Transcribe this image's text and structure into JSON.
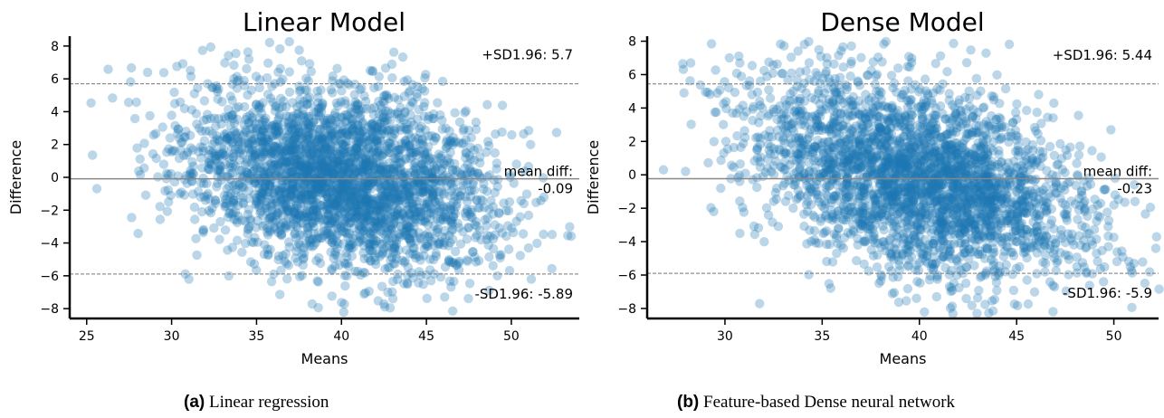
{
  "colors": {
    "points": "#1f77b4",
    "mean_line": "#888888",
    "loa_line": "#777777"
  },
  "chart_data": [
    {
      "type": "scatter",
      "title": "Linear Model",
      "xlabel": "Means",
      "ylabel": "Difference",
      "xlim": [
        24,
        54
      ],
      "ylim": [
        -8.6,
        8.6
      ],
      "xticks": [
        25,
        30,
        35,
        40,
        45,
        50
      ],
      "yticks": [
        -8,
        -6,
        -4,
        -2,
        0,
        2,
        4,
        6,
        8
      ],
      "mean_diff": -0.09,
      "upper_loa": 5.7,
      "lower_loa": -5.89,
      "upper_label": "+SD1.96: 5.7",
      "lower_label": "-SD1.96: -5.89",
      "mean_label_line1": "mean diff:",
      "mean_label_line2": "-0.09",
      "point_cloud": {
        "n": 3000,
        "x_center": 40,
        "x_sd": 4.6,
        "y_sd": 2.7,
        "slope": -0.18,
        "x_min": 25.2,
        "x_max": 53.6
      },
      "grid": false
    },
    {
      "type": "scatter",
      "title": "Dense Model",
      "xlabel": "Means",
      "ylabel": "Difference",
      "xlim": [
        26,
        52.3
      ],
      "ylim": [
        -8.6,
        8.3
      ],
      "xticks": [
        30,
        35,
        40,
        45,
        50
      ],
      "yticks": [
        -8,
        -6,
        -4,
        -2,
        0,
        2,
        4,
        6,
        8
      ],
      "mean_diff": -0.23,
      "upper_loa": 5.44,
      "lower_loa": -5.9,
      "upper_label": "+SD1.96: 5.44",
      "lower_label": "-SD1.96: -5.9",
      "mean_label_line1": "mean diff:",
      "mean_label_line2": "-0.23",
      "point_cloud": {
        "n": 3000,
        "x_center": 40,
        "x_sd": 4.3,
        "y_sd": 2.75,
        "slope": -0.3,
        "x_min": 26.8,
        "x_max": 52.5
      },
      "grid": false
    }
  ],
  "captions": [
    {
      "label": "(a)",
      "text": " Linear regression"
    },
    {
      "label": "(b)",
      "text": " Feature-based Dense neural network"
    }
  ]
}
